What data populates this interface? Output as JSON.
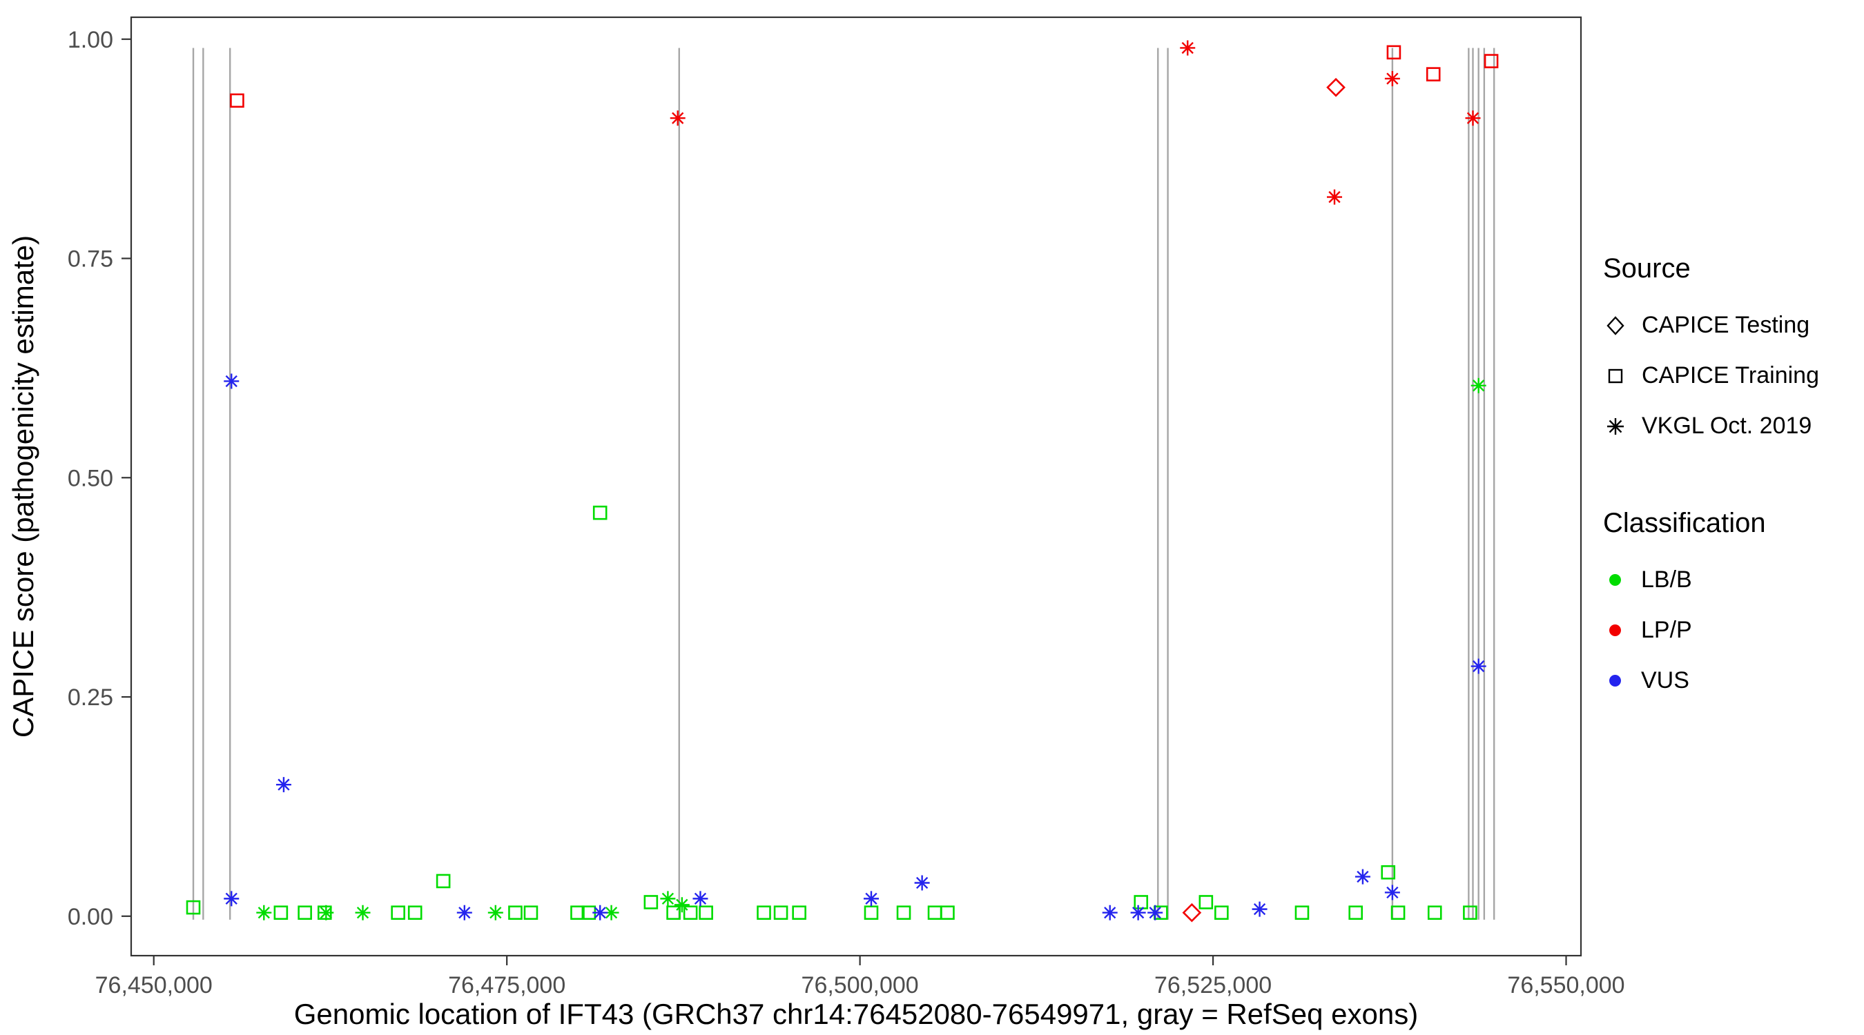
{
  "chart_data": {
    "type": "scatter",
    "title": "",
    "xlabel": "Genomic location of IFT43 (GRCh37 chr14:76452080-76549971, gray = RefSeq exons)",
    "ylabel": "CAPICE score (pathogenicity estimate)",
    "grid": false,
    "xlim": [
      76448400,
      76551050
    ],
    "ylim": [
      -0.045,
      1.025
    ],
    "x_ticks": [
      {
        "value": 76450000,
        "label": "76,450,000"
      },
      {
        "value": 76475000,
        "label": "76,475,000"
      },
      {
        "value": 76500000,
        "label": "76,500,000"
      },
      {
        "value": 76525000,
        "label": "76,525,000"
      },
      {
        "value": 76550000,
        "label": "76,550,000"
      }
    ],
    "y_ticks": [
      {
        "value": 0.0,
        "label": "0.00"
      },
      {
        "value": 0.25,
        "label": "0.25"
      },
      {
        "value": 0.5,
        "label": "0.50"
      },
      {
        "value": 0.75,
        "label": "0.75"
      },
      {
        "value": 1.0,
        "label": "1.00"
      }
    ],
    "exon_color": "#a6a6a6",
    "exon_positions": [
      76452800,
      76453500,
      76455400,
      76487200,
      76521100,
      76521800,
      76537700,
      76543100,
      76543400,
      76543800,
      76544200,
      76544900
    ],
    "series": [
      {
        "name": "CAPICE Testing / LP-P",
        "source": "CAPICE Testing",
        "classification": "LP/P",
        "shape": "diamond",
        "color": "#F20000",
        "points": [
          [
            76533700,
            0.945
          ],
          [
            76523500,
            0.004
          ]
        ]
      },
      {
        "name": "CAPICE Training / LP-P",
        "source": "CAPICE Training",
        "classification": "LP/P",
        "shape": "square",
        "color": "#F20000",
        "points": [
          [
            76455900,
            0.93
          ],
          [
            76537800,
            0.985
          ],
          [
            76540600,
            0.96
          ],
          [
            76544700,
            0.975
          ]
        ]
      },
      {
        "name": "VKGL Oct. 2019 / LP-P",
        "source": "VKGL Oct. 2019",
        "classification": "LP/P",
        "shape": "asterisk",
        "color": "#F20000",
        "points": [
          [
            76487100,
            0.91
          ],
          [
            76523200,
            0.99
          ],
          [
            76533600,
            0.82
          ],
          [
            76537700,
            0.955
          ],
          [
            76543400,
            0.91
          ]
        ]
      },
      {
        "name": "CAPICE Training / LB-B",
        "source": "CAPICE Training",
        "classification": "LB/B",
        "shape": "square",
        "color": "#00DC00",
        "points": [
          [
            76452800,
            0.01
          ],
          [
            76459000,
            0.004
          ],
          [
            76460700,
            0.004
          ],
          [
            76462100,
            0.004
          ],
          [
            76467300,
            0.004
          ],
          [
            76468500,
            0.004
          ],
          [
            76470500,
            0.04
          ],
          [
            76475600,
            0.004
          ],
          [
            76476700,
            0.004
          ],
          [
            76480000,
            0.004
          ],
          [
            76480800,
            0.004
          ],
          [
            76481600,
            0.46
          ],
          [
            76485200,
            0.016
          ],
          [
            76486800,
            0.004
          ],
          [
            76488000,
            0.004
          ],
          [
            76489100,
            0.004
          ],
          [
            76493200,
            0.004
          ],
          [
            76494400,
            0.004
          ],
          [
            76495700,
            0.004
          ],
          [
            76500800,
            0.004
          ],
          [
            76503100,
            0.004
          ],
          [
            76505300,
            0.004
          ],
          [
            76506200,
            0.004
          ],
          [
            76519900,
            0.016
          ],
          [
            76521300,
            0.004
          ],
          [
            76524500,
            0.016
          ],
          [
            76525600,
            0.004
          ],
          [
            76531300,
            0.004
          ],
          [
            76535100,
            0.004
          ],
          [
            76537400,
            0.05
          ],
          [
            76538100,
            0.004
          ],
          [
            76540700,
            0.004
          ],
          [
            76543200,
            0.004
          ]
        ]
      },
      {
        "name": "VKGL Oct. 2019 / LB-B",
        "source": "VKGL Oct. 2019",
        "classification": "LB/B",
        "shape": "asterisk",
        "color": "#00DC00",
        "points": [
          [
            76457800,
            0.004
          ],
          [
            76462200,
            0.004
          ],
          [
            76464800,
            0.004
          ],
          [
            76474200,
            0.004
          ],
          [
            76482400,
            0.004
          ],
          [
            76486400,
            0.02
          ],
          [
            76487400,
            0.013
          ],
          [
            76543800,
            0.605
          ]
        ]
      },
      {
        "name": "VKGL Oct. 2019 / VUS",
        "source": "VKGL Oct. 2019",
        "classification": "VUS",
        "shape": "asterisk",
        "color": "#2424EE",
        "points": [
          [
            76455500,
            0.61
          ],
          [
            76455500,
            0.02
          ],
          [
            76459200,
            0.15
          ],
          [
            76472000,
            0.004
          ],
          [
            76481600,
            0.004
          ],
          [
            76488700,
            0.02
          ],
          [
            76500800,
            0.02
          ],
          [
            76504400,
            0.038
          ],
          [
            76517700,
            0.004
          ],
          [
            76519700,
            0.004
          ],
          [
            76520900,
            0.004
          ],
          [
            76528300,
            0.008
          ],
          [
            76535600,
            0.045
          ],
          [
            76537700,
            0.027
          ],
          [
            76543800,
            0.285
          ]
        ]
      }
    ],
    "legend": {
      "position": "right",
      "source": {
        "title": "Source",
        "items": [
          {
            "label": "CAPICE Testing",
            "shape": "diamond"
          },
          {
            "label": "CAPICE Training",
            "shape": "square"
          },
          {
            "label": "VKGL Oct. 2019",
            "shape": "asterisk"
          }
        ]
      },
      "classification": {
        "title": "Classification",
        "items": [
          {
            "label": "LB/B",
            "color": "#00DC00"
          },
          {
            "label": "LP/P",
            "color": "#F20000"
          },
          {
            "label": "VUS",
            "color": "#2424EE"
          }
        ]
      }
    }
  }
}
